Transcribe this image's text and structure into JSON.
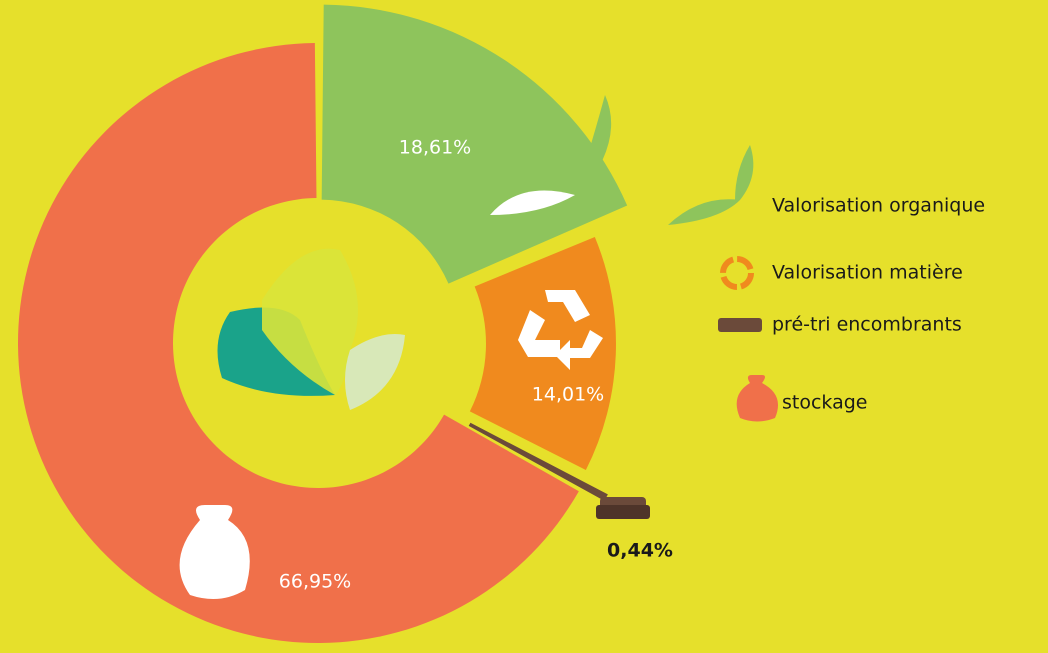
{
  "chart_data": {
    "type": "donut",
    "categories": [
      "Valorisation organique",
      "Valorisation matière",
      "pré-tri encombrants",
      "stockage"
    ],
    "values": [
      18.61,
      14.01,
      0.44,
      66.95
    ],
    "value_labels": [
      "18,61%",
      "14,01%",
      "0,44%",
      "66,95%"
    ],
    "colors": [
      "#8ec45c",
      "#f08a1e",
      "#6b4a3a",
      "#f0704a"
    ]
  }
}
